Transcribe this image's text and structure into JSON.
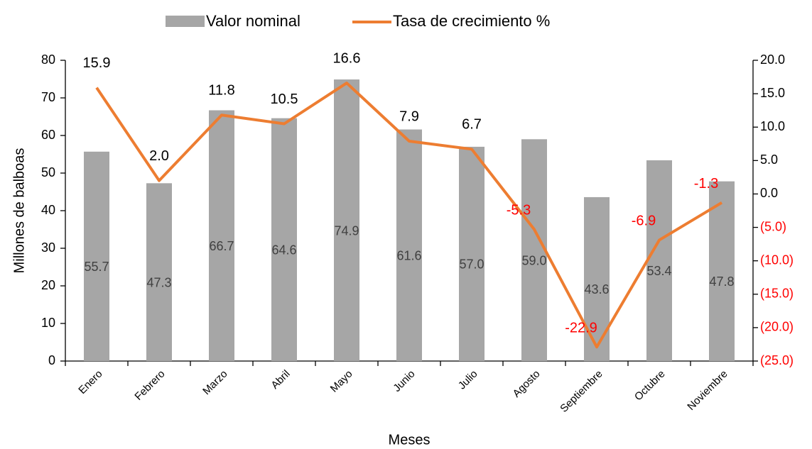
{
  "chart_data": {
    "type": "bar_line",
    "categories": [
      "Enero",
      "Febrero",
      "Marzo",
      "Abril",
      "Mayo",
      "Junio",
      "Julio",
      "Agosto",
      "Septiembre",
      "Octubre",
      "Noviembre"
    ],
    "series": [
      {
        "name": "Valor nominal",
        "type": "bar",
        "color": "#a6a6a6",
        "values": [
          55.7,
          47.3,
          66.7,
          64.6,
          74.9,
          61.6,
          57.0,
          59.0,
          43.6,
          53.4,
          47.8
        ],
        "value_labels": [
          "55.7",
          "47.3",
          "66.7",
          "64.6",
          "74.9",
          "61.6",
          "57.0",
          "59.0",
          "43.6",
          "53.4",
          "47.8"
        ]
      },
      {
        "name": "Tasa de crecimiento %",
        "type": "line",
        "axis": "y2",
        "color": "#ed7d31",
        "values": [
          15.9,
          2.0,
          11.8,
          10.5,
          16.6,
          7.9,
          6.7,
          -5.3,
          -22.9,
          -6.9,
          -1.3
        ],
        "value_labels": [
          "15.9",
          "2.0",
          "11.8",
          "10.5",
          "16.6",
          "7.9",
          "6.7",
          "-5.3",
          "-22.9",
          "-6.9",
          "-1.3"
        ]
      }
    ],
    "y_label": "Millones de balboas",
    "x_label": "Meses",
    "ylim": [
      0,
      80
    ],
    "yticks": [
      0,
      10,
      20,
      30,
      40,
      50,
      60,
      70,
      80
    ],
    "y2lim": [
      -25,
      20
    ],
    "y2ticks": [
      {
        "value": -25,
        "label": "(25.0)"
      },
      {
        "value": -20,
        "label": "(20.0)"
      },
      {
        "value": -15,
        "label": "(15.0)"
      },
      {
        "value": -10,
        "label": "(10.0)"
      },
      {
        "value": -5,
        "label": "(5.0)"
      },
      {
        "value": 0,
        "label": "0.0"
      },
      {
        "value": 5,
        "label": "5.0"
      },
      {
        "value": 10,
        "label": "10.0"
      },
      {
        "value": 15,
        "label": "15.0"
      },
      {
        "value": 20,
        "label": "20.0"
      }
    ],
    "negative_color": "#ff0000",
    "legend": "top"
  }
}
